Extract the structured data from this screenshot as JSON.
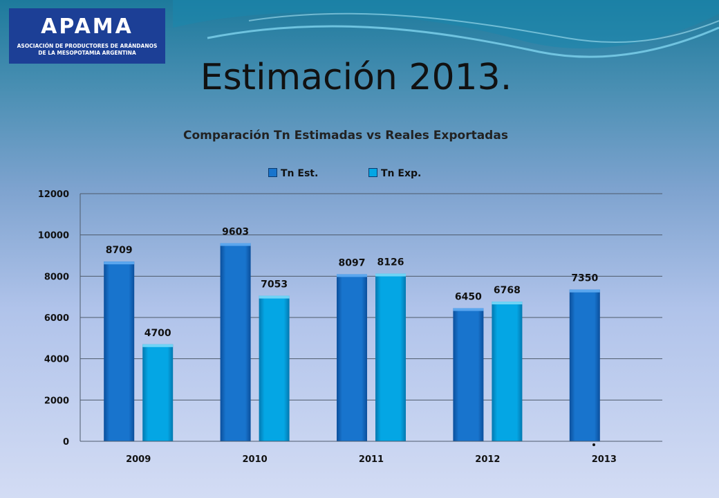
{
  "header": {
    "logo_text": "APAMA",
    "logo_subtitle_line1": "ASOCIACIÓN DE PRODUCTORES DE ARÁNDANOS",
    "logo_subtitle_line2": "DE LA MESOPOTAMIA ARGENTINA",
    "slide_title": "Estimación 2013."
  },
  "colors": {
    "logo_background": "#1c3f96",
    "series_est": "#1874cd",
    "series_exp": "#04a6e4"
  },
  "chart_data": {
    "type": "bar",
    "title": "Comparación Tn Estimadas vs Reales Exportadas",
    "categories": [
      "2009",
      "2010",
      "2011",
      "2012",
      "2013"
    ],
    "series": [
      {
        "name": "Tn Est.",
        "values": [
          8709,
          9603,
          8097,
          6450,
          7350
        ]
      },
      {
        "name": "Tn Exp.",
        "values": [
          4700,
          7053,
          8126,
          6768,
          null
        ]
      }
    ],
    "ylim": [
      0,
      12000
    ],
    "y_ticks": [
      0,
      2000,
      4000,
      6000,
      8000,
      10000,
      12000
    ],
    "grid": true,
    "legend_position": "top",
    "data_labels": true
  }
}
